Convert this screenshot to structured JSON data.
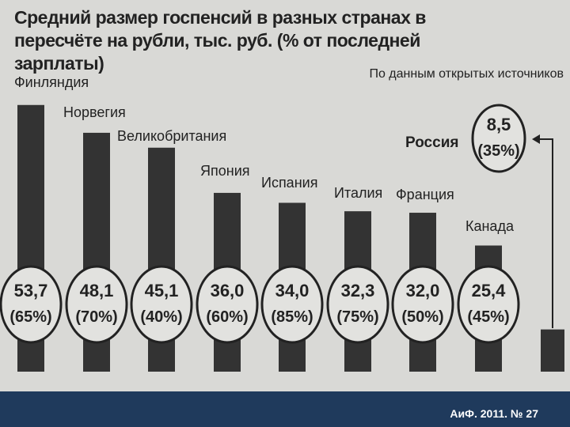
{
  "chart_data": {
    "type": "bar",
    "title": "Средний размер госпенсий в разных странах в пересчёте на рубли, тыс. руб. (% от последней зарплаты)",
    "source": "По данным открытых источников",
    "categories": [
      "Финляндия",
      "Норвегия",
      "Великобритания",
      "Япония",
      "Испания",
      "Италия",
      "Франция",
      "Канада",
      "Россия"
    ],
    "values": [
      53.7,
      48.1,
      45.1,
      36.0,
      34.0,
      32.3,
      32.0,
      25.4,
      8.5
    ],
    "value_labels": [
      "53,7",
      "48,1",
      "45,1",
      "36,0",
      "34,0",
      "32,3",
      "32,0",
      "25,4",
      "8,5"
    ],
    "shares": [
      65,
      70,
      40,
      60,
      85,
      75,
      50,
      45,
      35
    ],
    "share_labels": [
      "(65%)",
      "(70%)",
      "(40%)",
      "(60%)",
      "(85%)",
      "(75%)",
      "(50%)",
      "(45%)",
      "(35%)"
    ],
    "color": "#333333"
  },
  "footer": "АиФ. 2011. № 27"
}
